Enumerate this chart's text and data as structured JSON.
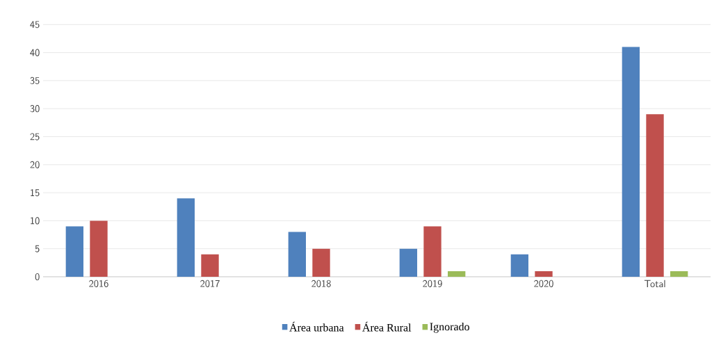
{
  "chart_data": {
    "type": "bar",
    "categories": [
      "2016",
      "2017",
      "2018",
      "2019",
      "2020",
      "Total"
    ],
    "series": [
      {
        "name": "Área urbana",
        "color": "#4f81bd",
        "values": [
          9,
          14,
          8,
          5,
          4,
          41
        ]
      },
      {
        "name": "Área Rural",
        "color": "#c0504d",
        "values": [
          10,
          4,
          5,
          9,
          1,
          29
        ]
      },
      {
        "name": "Ignorado",
        "color": "#9bbb59",
        "values": [
          0,
          0,
          0,
          1,
          0,
          1
        ]
      }
    ],
    "ylim": [
      0,
      45
    ],
    "yticks": [
      0,
      5,
      10,
      15,
      20,
      25,
      30,
      35,
      40,
      45
    ],
    "grid": "y",
    "legend": "bottom"
  }
}
